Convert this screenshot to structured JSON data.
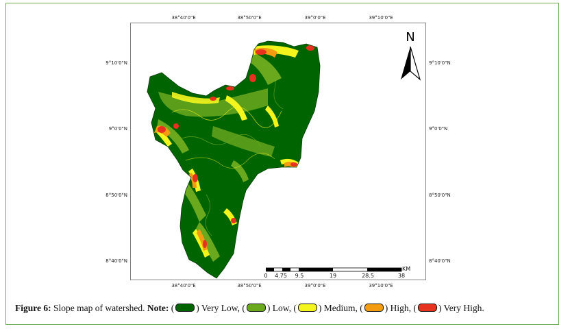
{
  "map": {
    "coords_top": [
      "38°40'0\"E",
      "38°50'0\"E",
      "39°0'0\"E",
      "39°10'0\"E"
    ],
    "coords_bottom": [
      "38°40'0\"E",
      "38°50'0\"E",
      "39°0'0\"E",
      "39°10'0\"E"
    ],
    "coords_left": [
      "9°10'0\"N",
      "9°0'0\"N",
      "8°50'0\"N",
      "8°40'0\"N"
    ],
    "coords_right": [
      "9°10'0\"N",
      "9°0'0\"N",
      "8°50'0\"N",
      "8°40'0\"N"
    ],
    "north_label": "N",
    "scale_labels": [
      "0",
      "4.75",
      "9.5",
      "19",
      "28.5",
      "38"
    ],
    "scale_unit": "KM",
    "colors": {
      "very_low": "#006400",
      "low": "#6aa81e",
      "medium": "#f5f51e",
      "high": "#f39c12",
      "very_high": "#e6321e"
    }
  },
  "caption": {
    "figure_label": "Figure 6:",
    "text": "Slope map of watershed.",
    "note_label": "Note:",
    "legend": [
      {
        "label": "Very Low,",
        "color": "#006400"
      },
      {
        "label": "Low,",
        "color": "#6aa81e"
      },
      {
        "label": "Medium,",
        "color": "#f5f51e"
      },
      {
        "label": "High,",
        "color": "#f39c12"
      },
      {
        "label": "Very High.",
        "color": "#e6321e"
      }
    ]
  }
}
